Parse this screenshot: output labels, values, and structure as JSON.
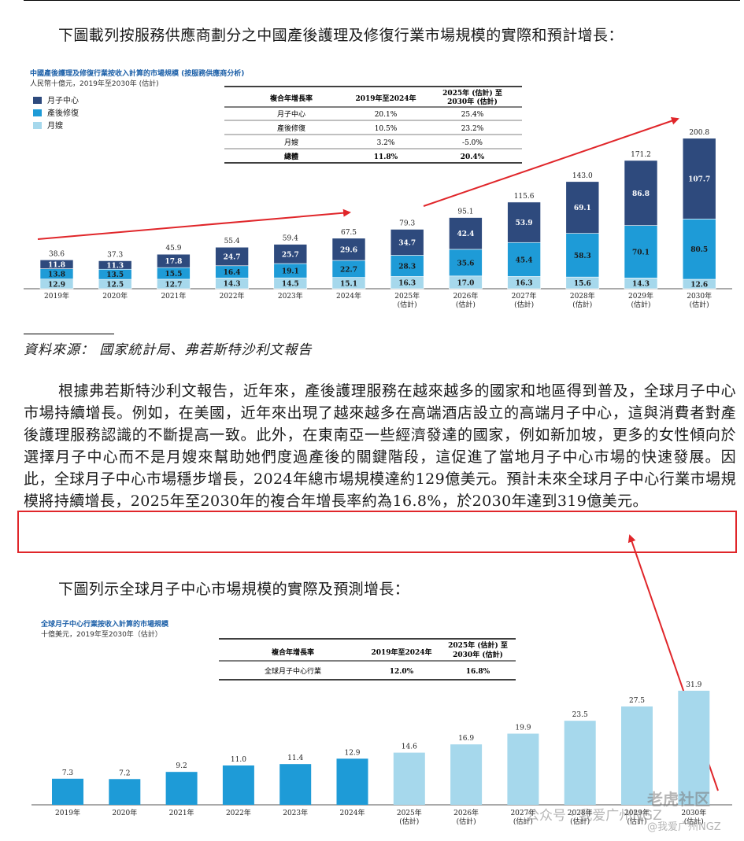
{
  "intro_text_1": "下圖載列按服務供應商劃分之中國產後護理及修復行業市場規模的實際和預計增長：",
  "chart1": {
    "title": "中國產後護理及修復行業按收入計算的市場規模 (按服務供應商分析)",
    "subtitle": "人民幣十億元，2019年至2030年 (估計)",
    "legend": [
      {
        "name": "月子中心",
        "color": "#2e4a7d"
      },
      {
        "name": "產後修復",
        "color": "#1e9bd7"
      },
      {
        "name": "月嫂",
        "color": "#a6d8ec"
      }
    ],
    "cagr_table": {
      "headers": [
        "複合年增長率",
        "2019年至2024年",
        "2025年 (估計) 至",
        "2030年 (估計)"
      ],
      "rows": [
        [
          "月子中心",
          "20.1%",
          "25.4%"
        ],
        [
          "產後修復",
          "10.5%",
          "23.2%"
        ],
        [
          "月嫂",
          "3.2%",
          "-5.0%"
        ],
        [
          "總體",
          "11.8%",
          "20.4%"
        ]
      ]
    }
  },
  "chart_data": [
    {
      "type": "bar",
      "stacked": true,
      "categories": [
        "2019年",
        "2020年",
        "2021年",
        "2022年",
        "2023年",
        "2024年",
        "2025年",
        "2026年",
        "2027年",
        "2028年",
        "2029年",
        "2030年"
      ],
      "category_notes": [
        "",
        "",
        "",
        "",
        "",
        "",
        "(估計)",
        "(估計)",
        "(估計)",
        "(估計)",
        "(估計)",
        "(估計)"
      ],
      "series": [
        {
          "name": "月嫂",
          "values": [
            12.9,
            12.5,
            12.7,
            14.3,
            14.5,
            15.1,
            16.3,
            17.0,
            16.3,
            15.6,
            14.3,
            12.6
          ]
        },
        {
          "name": "產後修復",
          "values": [
            13.8,
            13.5,
            15.5,
            16.4,
            19.1,
            22.7,
            28.3,
            35.6,
            45.4,
            58.3,
            70.1,
            80.5
          ]
        },
        {
          "name": "月子中心",
          "values": [
            11.8,
            11.3,
            17.8,
            24.7,
            25.7,
            29.6,
            34.7,
            42.4,
            53.9,
            69.1,
            86.8,
            107.7
          ]
        }
      ],
      "totals": [
        38.6,
        37.3,
        45.9,
        55.4,
        59.4,
        67.5,
        79.3,
        95.1,
        115.6,
        143.0,
        171.2,
        200.8
      ],
      "ylim": [
        0,
        210
      ]
    },
    {
      "type": "bar",
      "categories": [
        "2019年",
        "2020年",
        "2021年",
        "2022年",
        "2023年",
        "2024年",
        "2025年",
        "2026年",
        "2027年",
        "2028年",
        "2029年",
        "2030年"
      ],
      "category_notes": [
        "",
        "",
        "",
        "",
        "",
        "",
        "(估計)",
        "(估計)",
        "(估計)",
        "(估計)",
        "(估計)",
        "(估計)"
      ],
      "values": [
        7.3,
        7.2,
        9.2,
        11.0,
        11.4,
        12.9,
        14.6,
        16.9,
        19.9,
        23.5,
        27.5,
        31.9
      ],
      "colors": {
        "actual": "#1e9bd7",
        "forecast": "#a6d8ec"
      },
      "ylim": [
        0,
        33
      ]
    }
  ],
  "source_note": "資料來源： 國家統計局、弗若斯特沙利文報告",
  "body_text": "根據弗若斯特沙利文報告，近年來，產後護理服務在越來越多的國家和地區得到普及，全球月子中心市場持續增長。例如，在美國，近年來出現了越來越多在高端酒店設立的高端月子中心，這與消費者對產後護理服務認識的不斷提高一致。此外，在東南亞一些經濟發達的國家，例如新加坡，更多的女性傾向於選擇月子中心而不是月嫂來幫助她們度過產後的關鍵階段，這促進了當地月子中心市場的快速發展。因此，全球月子中心市場穩步增長，2024年總市場規模達約129億美元。預計未來全球月子中心行業市場規模將持續增長，2025年至2030年的複合年增長率約為16.8%，於2030年達到319億美元。",
  "intro_text_2": "下圖列示全球月子中心市場規模的實際及預測增長：",
  "chart2": {
    "title": "全球月子中心行業按收入計算的市場規模",
    "subtitle": "十億美元，2019年至2030年（估計）",
    "cagr_table": {
      "headers": [
        "複合年增長率",
        "2019年至2024年",
        "2025年 (估計) 至",
        "2030年 (估計)"
      ],
      "rows": [
        [
          "全球月子中心行業",
          "12.0%",
          "16.8%"
        ]
      ]
    }
  },
  "watermark": {
    "line1": "公众号 · 我爱广州NGZ",
    "line2": "老虎社区",
    "line3": "@我爱广州NGZ"
  },
  "annotation_color": "#e0262a"
}
